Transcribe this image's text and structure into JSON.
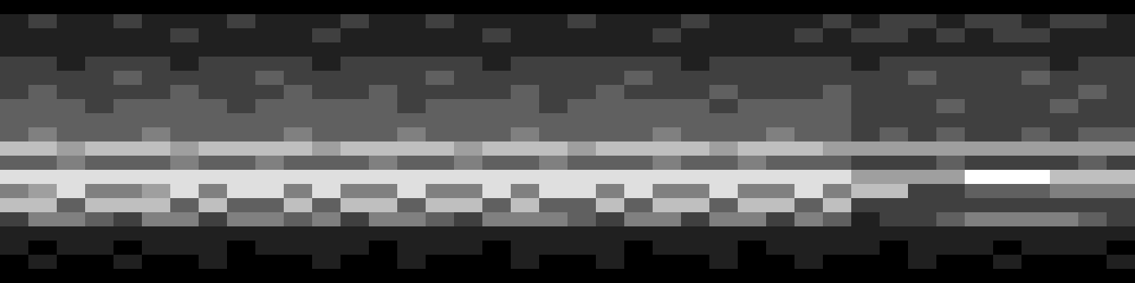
{
  "chart_data": {
    "type": "heatmap",
    "tick_labels": false,
    "values": [
      [
        0,
        0,
        0,
        0,
        0,
        0,
        0,
        0,
        0,
        0,
        0,
        0,
        0,
        0,
        0,
        0,
        0,
        0,
        0,
        0,
        0,
        0,
        0,
        0,
        0,
        0,
        0,
        0,
        0,
        0,
        0,
        0,
        0,
        0,
        0,
        0,
        0,
        0,
        0,
        0
      ],
      [
        1,
        2,
        1,
        1,
        2,
        1,
        1,
        1,
        2,
        1,
        1,
        1,
        2,
        1,
        1,
        2,
        1,
        1,
        1,
        1,
        2,
        1,
        1,
        1,
        2,
        1,
        1,
        1,
        1,
        2,
        1,
        2,
        2,
        1,
        2,
        2,
        1,
        2,
        2,
        1
      ],
      [
        1,
        1,
        1,
        1,
        1,
        1,
        2,
        1,
        1,
        1,
        1,
        2,
        1,
        1,
        1,
        1,
        1,
        2,
        1,
        1,
        1,
        1,
        1,
        2,
        1,
        1,
        1,
        1,
        2,
        1,
        2,
        2,
        1,
        2,
        1,
        2,
        2,
        1,
        1,
        1
      ],
      [
        1,
        1,
        1,
        1,
        1,
        1,
        1,
        1,
        1,
        1,
        1,
        1,
        1,
        1,
        1,
        1,
        1,
        1,
        1,
        1,
        1,
        1,
        1,
        1,
        1,
        1,
        1,
        1,
        1,
        1,
        1,
        1,
        1,
        1,
        1,
        1,
        1,
        1,
        1,
        1
      ],
      [
        2,
        2,
        1,
        2,
        2,
        2,
        1,
        2,
        2,
        2,
        2,
        1,
        2,
        2,
        2,
        2,
        2,
        1,
        2,
        2,
        2,
        2,
        2,
        2,
        1,
        2,
        2,
        2,
        2,
        2,
        1,
        2,
        2,
        2,
        2,
        2,
        2,
        1,
        2,
        2
      ],
      [
        2,
        2,
        2,
        2,
        3,
        2,
        2,
        2,
        2,
        3,
        2,
        2,
        2,
        2,
        2,
        3,
        2,
        2,
        2,
        2,
        2,
        2,
        3,
        2,
        2,
        2,
        2,
        2,
        2,
        2,
        2,
        2,
        3,
        2,
        2,
        2,
        3,
        2,
        2,
        2
      ],
      [
        2,
        3,
        2,
        2,
        2,
        2,
        3,
        2,
        2,
        2,
        3,
        2,
        2,
        3,
        2,
        2,
        2,
        2,
        3,
        2,
        2,
        3,
        2,
        2,
        2,
        3,
        2,
        2,
        2,
        3,
        2,
        2,
        2,
        2,
        2,
        2,
        2,
        2,
        3,
        2
      ],
      [
        3,
        3,
        3,
        2,
        3,
        3,
        3,
        3,
        2,
        3,
        3,
        3,
        3,
        3,
        2,
        3,
        3,
        3,
        3,
        2,
        3,
        3,
        3,
        3,
        3,
        2,
        3,
        3,
        3,
        3,
        2,
        2,
        2,
        3,
        2,
        2,
        2,
        3,
        2,
        2
      ],
      [
        3,
        3,
        3,
        3,
        3,
        3,
        3,
        3,
        3,
        3,
        3,
        3,
        3,
        3,
        3,
        3,
        3,
        3,
        3,
        3,
        3,
        3,
        3,
        3,
        3,
        3,
        3,
        3,
        3,
        3,
        2,
        2,
        2,
        2,
        2,
        2,
        2,
        2,
        2,
        2
      ],
      [
        3,
        4,
        3,
        3,
        3,
        4,
        3,
        3,
        3,
        3,
        4,
        3,
        3,
        3,
        4,
        3,
        3,
        3,
        4,
        3,
        3,
        3,
        3,
        4,
        3,
        3,
        3,
        4,
        3,
        3,
        2,
        3,
        2,
        3,
        2,
        2,
        3,
        2,
        3,
        3
      ],
      [
        6,
        6,
        5,
        6,
        6,
        6,
        5,
        6,
        6,
        6,
        6,
        5,
        6,
        6,
        6,
        6,
        5,
        6,
        6,
        6,
        5,
        6,
        6,
        6,
        6,
        5,
        6,
        6,
        6,
        5,
        5,
        5,
        5,
        5,
        5,
        5,
        5,
        5,
        5,
        5
      ],
      [
        3,
        3,
        4,
        3,
        3,
        3,
        4,
        3,
        3,
        4,
        3,
        3,
        3,
        4,
        3,
        3,
        4,
        3,
        3,
        4,
        3,
        3,
        3,
        4,
        3,
        3,
        4,
        3,
        3,
        3,
        2,
        2,
        2,
        3,
        2,
        2,
        2,
        2,
        3,
        2
      ],
      [
        7,
        7,
        7,
        7,
        7,
        7,
        7,
        7,
        7,
        7,
        7,
        7,
        7,
        7,
        7,
        7,
        7,
        7,
        7,
        7,
        7,
        7,
        7,
        7,
        7,
        7,
        7,
        7,
        7,
        7,
        5,
        5,
        5,
        5,
        8,
        8,
        8,
        6,
        6,
        6
      ],
      [
        4,
        5,
        7,
        4,
        4,
        5,
        7,
        4,
        7,
        7,
        4,
        7,
        4,
        4,
        7,
        4,
        4,
        7,
        4,
        7,
        7,
        4,
        7,
        4,
        4,
        7,
        4,
        4,
        7,
        4,
        6,
        6,
        2,
        2,
        3,
        3,
        3,
        4,
        4,
        4
      ],
      [
        6,
        6,
        3,
        6,
        6,
        6,
        3,
        6,
        3,
        3,
        6,
        3,
        6,
        6,
        3,
        6,
        6,
        3,
        6,
        3,
        3,
        6,
        3,
        6,
        6,
        3,
        6,
        6,
        3,
        6,
        2,
        2,
        2,
        2,
        2,
        2,
        2,
        2,
        2,
        2
      ],
      [
        2,
        4,
        4,
        3,
        2,
        4,
        4,
        2,
        4,
        4,
        3,
        4,
        2,
        4,
        4,
        3,
        2,
        4,
        4,
        4,
        3,
        2,
        4,
        4,
        2,
        4,
        4,
        2,
        4,
        3,
        1,
        2,
        2,
        3,
        4,
        4,
        4,
        4,
        3,
        2
      ],
      [
        1,
        1,
        1,
        1,
        1,
        1,
        1,
        1,
        1,
        1,
        1,
        1,
        1,
        1,
        1,
        1,
        1,
        1,
        1,
        1,
        1,
        1,
        1,
        1,
        1,
        1,
        1,
        1,
        1,
        1,
        1,
        1,
        1,
        1,
        1,
        1,
        1,
        1,
        1,
        1
      ],
      [
        1,
        0,
        1,
        1,
        0,
        1,
        1,
        1,
        0,
        1,
        1,
        1,
        1,
        0,
        1,
        1,
        1,
        0,
        1,
        1,
        1,
        1,
        0,
        1,
        1,
        1,
        0,
        1,
        1,
        1,
        1,
        0,
        1,
        1,
        1,
        0,
        1,
        1,
        1,
        0
      ],
      [
        0,
        1,
        0,
        0,
        1,
        0,
        0,
        1,
        0,
        0,
        0,
        1,
        0,
        0,
        1,
        0,
        0,
        0,
        1,
        0,
        0,
        1,
        0,
        0,
        0,
        1,
        0,
        0,
        1,
        0,
        0,
        0,
        1,
        0,
        0,
        1,
        0,
        0,
        0,
        1
      ],
      [
        0,
        0,
        0,
        0,
        0,
        0,
        0,
        0,
        0,
        0,
        0,
        0,
        0,
        0,
        0,
        0,
        0,
        0,
        0,
        0,
        0,
        0,
        0,
        0,
        0,
        0,
        0,
        0,
        0,
        0,
        0,
        0,
        0,
        0,
        0,
        0,
        0,
        0,
        0,
        0
      ]
    ]
  }
}
